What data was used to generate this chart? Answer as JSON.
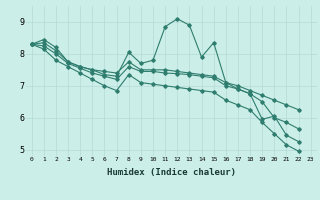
{
  "xlabel": "Humidex (Indice chaleur)",
  "background_color": "#cceee8",
  "grid_color": "#b5d9d4",
  "line_color": "#2e7d6e",
  "xlim": [
    -0.5,
    23.5
  ],
  "ylim": [
    4.8,
    9.5
  ],
  "yticks": [
    5,
    6,
    7,
    8,
    9
  ],
  "xticks": [
    0,
    1,
    2,
    3,
    4,
    5,
    6,
    7,
    8,
    9,
    10,
    11,
    12,
    13,
    14,
    15,
    16,
    17,
    18,
    19,
    20,
    21,
    22,
    23
  ],
  "series": [
    [
      8.3,
      8.45,
      8.2,
      7.75,
      7.6,
      7.5,
      7.35,
      7.3,
      8.05,
      7.7,
      7.8,
      8.85,
      9.1,
      8.9,
      7.9,
      8.35,
      7.1,
      6.9,
      6.75,
      5.95,
      6.05,
      5.45,
      5.25
    ],
    [
      8.3,
      8.35,
      8.1,
      7.75,
      7.6,
      7.5,
      7.45,
      7.4,
      7.75,
      7.5,
      7.5,
      7.5,
      7.45,
      7.4,
      7.35,
      7.3,
      7.1,
      7.0,
      6.85,
      6.7,
      6.55,
      6.4,
      6.25
    ],
    [
      8.3,
      8.25,
      8.0,
      7.7,
      7.55,
      7.4,
      7.3,
      7.2,
      7.6,
      7.45,
      7.45,
      7.4,
      7.38,
      7.35,
      7.3,
      7.25,
      7.0,
      6.9,
      6.75,
      6.5,
      6.0,
      5.85,
      5.65
    ],
    [
      8.3,
      8.15,
      7.8,
      7.6,
      7.4,
      7.2,
      7.0,
      6.85,
      7.35,
      7.1,
      7.05,
      7.0,
      6.95,
      6.9,
      6.85,
      6.8,
      6.55,
      6.4,
      6.25,
      5.85,
      5.5,
      5.15,
      4.95
    ]
  ]
}
